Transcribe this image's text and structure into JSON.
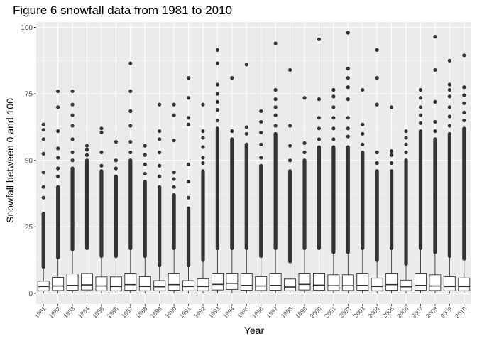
{
  "chart_data": {
    "type": "box",
    "title": "Figure 6 snowfall data from 1981 to 2010",
    "xlabel": "Year",
    "ylabel": "Snowfall between 0 and 100",
    "ylim": [
      -4,
      102
    ],
    "y_ticks": [
      0,
      25,
      50,
      75,
      100
    ],
    "grid": true,
    "legend": "none",
    "colors": {
      "panel": "#ebebeb",
      "grid_major": "#ffffff",
      "grid_minor": "#f5f5f5",
      "box_fill": "#ffffff",
      "box_line": "#333333",
      "point": "#333333"
    },
    "categories": [
      "1981",
      "1982",
      "1983",
      "1984",
      "1985",
      "1986",
      "1987",
      "1988",
      "1989",
      "1990",
      "1991",
      "1992",
      "1993",
      "1994",
      "1995",
      "1996",
      "1997",
      "1998",
      "1999",
      "2000",
      "2001",
      "2002",
      "2003",
      "2004",
      "2005",
      "2006",
      "2007",
      "2008",
      "2009",
      "2010"
    ],
    "boxes": [
      {
        "q1": 1.0,
        "median": 2.6,
        "q3": 4.6,
        "whisker_low": 0,
        "whisker_high": 10.0,
        "dense_max": 30,
        "outliers": [
          36,
          40,
          45.5,
          52.5,
          58,
          61.5,
          63.5
        ]
      },
      {
        "q1": 1.1,
        "median": 2.8,
        "q3": 6.0,
        "whisker_low": 0,
        "whisker_high": 13.5,
        "dense_max": 40,
        "outliers": [
          44,
          47,
          51,
          54.5,
          61,
          70,
          76
        ]
      },
      {
        "q1": 1.2,
        "median": 3.0,
        "q3": 7.3,
        "whisker_low": 0,
        "whisker_high": 16.5,
        "dense_max": 47,
        "outliers": [
          50,
          53,
          58,
          63,
          67,
          71,
          76
        ]
      },
      {
        "q1": 1.3,
        "median": 3.2,
        "q3": 7.5,
        "whisker_low": 0,
        "whisker_high": 17.0,
        "dense_max": 50,
        "outliers": [
          52,
          54,
          55.5
        ]
      },
      {
        "q1": 1.0,
        "median": 2.8,
        "q3": 6.2,
        "whisker_low": 0,
        "whisker_high": 14.0,
        "dense_max": 46,
        "outliers": [
          48,
          53,
          60.5,
          62
        ]
      },
      {
        "q1": 1.0,
        "median": 2.6,
        "q3": 6.2,
        "whisker_low": 0,
        "whisker_high": 14.0,
        "dense_max": 44,
        "outliers": [
          47,
          50,
          57
        ]
      },
      {
        "q1": 1.2,
        "median": 3.3,
        "q3": 7.6,
        "whisker_low": 0,
        "whisker_high": 17.0,
        "dense_max": 50,
        "outliers": [
          53,
          57,
          63,
          68.5,
          76,
          86.5
        ]
      },
      {
        "q1": 1.0,
        "median": 2.6,
        "q3": 6.3,
        "whisker_low": 0,
        "whisker_high": 14.0,
        "dense_max": 42,
        "outliers": [
          45,
          48.5,
          52,
          55.5
        ]
      },
      {
        "q1": 1.0,
        "median": 2.5,
        "q3": 4.8,
        "whisker_low": 0,
        "whisker_high": 10.5,
        "dense_max": 40,
        "outliers": [
          44,
          48,
          53,
          58,
          61,
          71
        ]
      },
      {
        "q1": 1.2,
        "median": 3.3,
        "q3": 7.6,
        "whisker_low": 0,
        "whisker_high": 17.0,
        "dense_max": 37,
        "outliers": [
          40,
          43,
          45.5,
          57.5,
          67,
          71
        ]
      },
      {
        "q1": 1.0,
        "median": 2.6,
        "q3": 4.8,
        "whisker_low": 0,
        "whisker_high": 10.5,
        "dense_max": 32,
        "outliers": [
          36,
          42,
          48.5,
          63.5,
          66,
          73.5,
          81
        ]
      },
      {
        "q1": 1.0,
        "median": 2.6,
        "q3": 5.5,
        "whisker_low": 0,
        "whisker_high": 12.5,
        "dense_max": 46,
        "outliers": [
          49,
          51,
          55,
          58.5,
          61,
          71
        ]
      },
      {
        "q1": 1.3,
        "median": 3.4,
        "q3": 7.6,
        "whisker_low": 0,
        "whisker_high": 17.0,
        "dense_max": 62,
        "outliers": [
          65,
          69,
          72,
          75,
          78.5,
          86.5,
          91.5
        ]
      },
      {
        "q1": 1.5,
        "median": 3.8,
        "q3": 7.6,
        "whisker_low": 0,
        "whisker_high": 17.0,
        "dense_max": 58,
        "outliers": [
          61,
          81
        ]
      },
      {
        "q1": 1.2,
        "median": 3.0,
        "q3": 7.6,
        "whisker_low": 0,
        "whisker_high": 17.0,
        "dense_max": 56,
        "outliers": [
          60,
          62.5,
          86
        ]
      },
      {
        "q1": 1.1,
        "median": 2.8,
        "q3": 6.3,
        "whisker_low": 0,
        "whisker_high": 14.0,
        "dense_max": 48,
        "outliers": [
          51,
          56,
          60.5,
          64.5,
          68.5
        ]
      },
      {
        "q1": 1.2,
        "median": 3.0,
        "q3": 7.6,
        "whisker_low": 0,
        "whisker_high": 17.0,
        "dense_max": 60,
        "outliers": [
          63,
          67,
          70,
          73,
          76.5,
          94
        ]
      },
      {
        "q1": 1.0,
        "median": 2.4,
        "q3": 5.4,
        "whisker_low": 0,
        "whisker_high": 12.0,
        "dense_max": 46,
        "outliers": [
          50,
          55.5,
          63,
          84
        ]
      },
      {
        "q1": 1.3,
        "median": 3.4,
        "q3": 7.6,
        "whisker_low": 0,
        "whisker_high": 17.0,
        "dense_max": 50,
        "outliers": [
          53,
          56.5,
          73.5
        ]
      },
      {
        "q1": 1.2,
        "median": 3.1,
        "q3": 7.6,
        "whisker_low": 0,
        "whisker_high": 17.0,
        "dense_max": 55,
        "outliers": [
          58,
          62,
          66,
          73,
          95.5
        ]
      },
      {
        "q1": 1.1,
        "median": 2.9,
        "q3": 7.0,
        "whisker_low": 0,
        "whisker_high": 15.5,
        "dense_max": 55,
        "outliers": [
          58,
          62,
          66,
          70,
          74,
          76.5
        ]
      },
      {
        "q1": 1.1,
        "median": 2.9,
        "q3": 7.0,
        "whisker_low": 0,
        "whisker_high": 15.5,
        "dense_max": 55,
        "outliers": [
          59,
          62,
          66,
          73,
          77.5,
          81,
          84.5,
          98
        ]
      },
      {
        "q1": 1.2,
        "median": 3.0,
        "q3": 7.6,
        "whisker_low": 0,
        "whisker_high": 17.0,
        "dense_max": 53,
        "outliers": [
          56,
          60,
          63.5,
          76.5
        ]
      },
      {
        "q1": 1.0,
        "median": 2.6,
        "q3": 5.7,
        "whisker_low": 0,
        "whisker_high": 12.5,
        "dense_max": 46,
        "outliers": [
          49,
          53,
          71,
          81,
          91.5
        ]
      },
      {
        "q1": 1.2,
        "median": 3.3,
        "q3": 7.6,
        "whisker_low": 0,
        "whisker_high": 17.0,
        "dense_max": 46,
        "outliers": [
          49,
          52,
          53.5,
          70
        ]
      },
      {
        "q1": 1.0,
        "median": 2.5,
        "q3": 5.0,
        "whisker_low": 0,
        "whisker_high": 11.0,
        "dense_max": 50,
        "outliers": [
          53,
          56,
          58.5,
          61
        ]
      },
      {
        "q1": 1.2,
        "median": 3.0,
        "q3": 7.6,
        "whisker_low": 0,
        "whisker_high": 17.0,
        "dense_max": 61,
        "outliers": [
          64,
          67,
          70,
          73.5,
          76.5
        ]
      },
      {
        "q1": 1.1,
        "median": 2.8,
        "q3": 7.0,
        "whisker_low": 0,
        "whisker_high": 15.5,
        "dense_max": 58,
        "outliers": [
          61,
          64.5,
          72,
          84,
          96.5
        ]
      },
      {
        "q1": 1.0,
        "median": 2.6,
        "q3": 6.3,
        "whisker_low": 0,
        "whisker_high": 14.0,
        "dense_max": 60,
        "outliers": [
          63,
          66.5,
          70,
          74,
          76.5,
          78.5,
          87.5
        ]
      },
      {
        "q1": 1.0,
        "median": 2.6,
        "q3": 5.8,
        "whisker_low": 0,
        "whisker_high": 13.0,
        "dense_max": 62,
        "outliers": [
          65,
          68,
          71.5,
          74.5,
          77.5,
          89.5
        ]
      }
    ]
  }
}
